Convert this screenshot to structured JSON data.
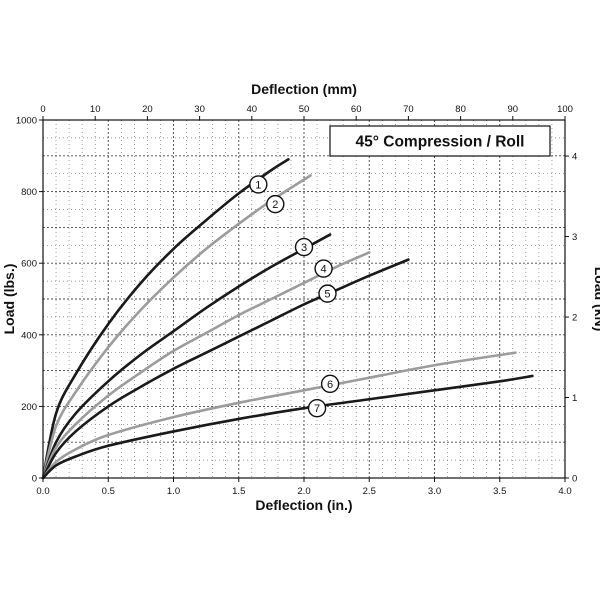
{
  "chart_data": {
    "type": "line",
    "title": "45° Compression / Roll",
    "xlabel": "Deflection (in.)",
    "ylabel": "Load (lbs.)",
    "x2label": "Deflection (mm)",
    "y2label": "Load (kN)",
    "xlim": [
      0,
      4.0
    ],
    "ylim": [
      0,
      1000
    ],
    "x2lim": [
      0,
      100
    ],
    "y2lim": [
      0,
      4.448
    ],
    "x_ticks": [
      "0.0",
      "0.5",
      "1.0",
      "1.5",
      "2.0",
      "2.5",
      "3.0",
      "3.5",
      "4.0"
    ],
    "y_ticks": [
      "0",
      "200",
      "400",
      "600",
      "800",
      "1000"
    ],
    "x2_ticks": [
      "0",
      "10",
      "20",
      "30",
      "40",
      "50",
      "60",
      "70",
      "80",
      "90",
      "100"
    ],
    "y2_ticks": [
      "0",
      "1",
      "2",
      "3",
      "4"
    ],
    "grid": true,
    "series": [
      {
        "name": "1",
        "color": "#1a1a1a",
        "x": [
          0,
          0.1,
          0.25,
          0.5,
          0.75,
          1.0,
          1.25,
          1.5,
          1.75,
          1.88
        ],
        "y": [
          0,
          180,
          290,
          430,
          545,
          640,
          720,
          795,
          860,
          890
        ]
      },
      {
        "name": "2",
        "color": "#9c9c9c",
        "x": [
          0,
          0.1,
          0.25,
          0.5,
          0.75,
          1.0,
          1.25,
          1.5,
          1.75,
          2.05
        ],
        "y": [
          0,
          145,
          240,
          365,
          470,
          560,
          640,
          710,
          775,
          845
        ]
      },
      {
        "name": "3",
        "color": "#1a1a1a",
        "x": [
          0,
          0.1,
          0.25,
          0.5,
          0.75,
          1.0,
          1.25,
          1.5,
          1.75,
          2.0,
          2.2
        ],
        "y": [
          0,
          100,
          180,
          270,
          345,
          410,
          475,
          535,
          590,
          640,
          680
        ]
      },
      {
        "name": "4",
        "color": "#9c9c9c",
        "x": [
          0,
          0.1,
          0.25,
          0.5,
          0.75,
          1.0,
          1.25,
          1.5,
          1.75,
          2.0,
          2.25,
          2.5
        ],
        "y": [
          0,
          85,
          150,
          230,
          295,
          355,
          405,
          455,
          500,
          545,
          590,
          630
        ]
      },
      {
        "name": "5",
        "color": "#1a1a1a",
        "x": [
          0,
          0.1,
          0.25,
          0.5,
          0.75,
          1.0,
          1.25,
          1.5,
          1.75,
          2.0,
          2.25,
          2.5,
          2.8
        ],
        "y": [
          0,
          70,
          130,
          200,
          255,
          305,
          350,
          395,
          440,
          485,
          525,
          565,
          610
        ]
      },
      {
        "name": "6",
        "color": "#9c9c9c",
        "x": [
          0,
          0.1,
          0.25,
          0.5,
          1.0,
          1.5,
          2.0,
          2.5,
          3.0,
          3.62
        ],
        "y": [
          0,
          45,
          80,
          120,
          170,
          210,
          245,
          280,
          315,
          350
        ]
      },
      {
        "name": "7",
        "color": "#1a1a1a",
        "x": [
          0,
          0.1,
          0.25,
          0.5,
          1.0,
          1.5,
          2.0,
          2.5,
          3.0,
          3.5,
          3.75
        ],
        "y": [
          0,
          35,
          60,
          90,
          130,
          165,
          195,
          220,
          245,
          270,
          285
        ]
      }
    ],
    "markers": [
      {
        "label": "1",
        "x": 1.65,
        "y": 820
      },
      {
        "label": "2",
        "x": 1.78,
        "y": 765
      },
      {
        "label": "3",
        "x": 2.0,
        "y": 645
      },
      {
        "label": "4",
        "x": 2.15,
        "y": 585
      },
      {
        "label": "5",
        "x": 2.18,
        "y": 515
      },
      {
        "label": "6",
        "x": 2.2,
        "y": 263
      },
      {
        "label": "7",
        "x": 2.1,
        "y": 195
      }
    ]
  }
}
